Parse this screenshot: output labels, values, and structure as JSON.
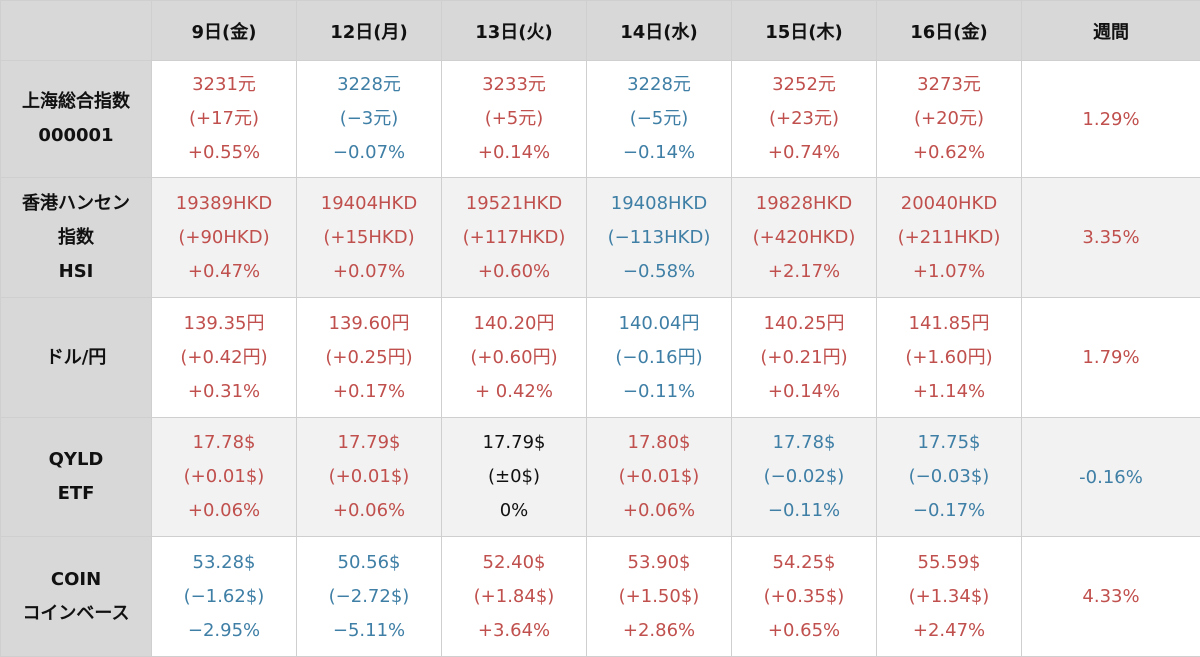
{
  "table": {
    "corner": "",
    "headers": [
      "9日(金)",
      "12日(月)",
      "13日(火)",
      "14日(水)",
      "15日(木)",
      "16日(金)",
      "週間"
    ],
    "colors": {
      "up": "#c0504d",
      "down": "#3f7fa6",
      "flat": "#111111"
    },
    "rows": [
      {
        "label": [
          "上海総合指数",
          "000001"
        ],
        "cells": [
          {
            "dir": "up",
            "lines": [
              "3231元",
              "(+17元)",
              "+0.55%"
            ]
          },
          {
            "dir": "down",
            "lines": [
              "3228元",
              "(−3元)",
              "−0.07%"
            ]
          },
          {
            "dir": "up",
            "lines": [
              "3233元",
              "(+5元)",
              "+0.14%"
            ]
          },
          {
            "dir": "down",
            "lines": [
              "3228元",
              "(−5元)",
              "−0.14%"
            ]
          },
          {
            "dir": "up",
            "lines": [
              "3252元",
              "(+23元)",
              "+0.74%"
            ]
          },
          {
            "dir": "up",
            "lines": [
              "3273元",
              "(+20元)",
              "+0.62%"
            ]
          }
        ],
        "week": {
          "dir": "up",
          "value": "1.29%"
        }
      },
      {
        "label": [
          "香港ハンセン",
          "指数",
          "HSI"
        ],
        "cells": [
          {
            "dir": "up",
            "lines": [
              "19389HKD",
              "(+90HKD)",
              "+0.47%"
            ]
          },
          {
            "dir": "up",
            "lines": [
              "19404HKD",
              "(+15HKD)",
              "+0.07%"
            ]
          },
          {
            "dir": "up",
            "lines": [
              "19521HKD",
              "(+117HKD)",
              "+0.60%"
            ]
          },
          {
            "dir": "down",
            "lines": [
              "19408HKD",
              "(−113HKD)",
              "−0.58%"
            ]
          },
          {
            "dir": "up",
            "lines": [
              "19828HKD",
              "(+420HKD)",
              "+2.17%"
            ]
          },
          {
            "dir": "up",
            "lines": [
              "20040HKD",
              "(+211HKD)",
              "+1.07%"
            ]
          }
        ],
        "week": {
          "dir": "up",
          "value": "3.35%"
        }
      },
      {
        "label": [
          "ドル/円"
        ],
        "cells": [
          {
            "dir": "up",
            "lines": [
              "139.35円",
              "(+0.42円)",
              "+0.31%"
            ]
          },
          {
            "dir": "up",
            "lines": [
              "139.60円",
              "(+0.25円)",
              "+0.17%"
            ]
          },
          {
            "dir": "up",
            "lines": [
              "140.20円",
              "(+0.60円)",
              "+ 0.42%"
            ]
          },
          {
            "dir": "down",
            "lines": [
              "140.04円",
              "(−0.16円)",
              "−0.11%"
            ]
          },
          {
            "dir": "up",
            "lines": [
              "140.25円",
              "(+0.21円)",
              "+0.14%"
            ]
          },
          {
            "dir": "up",
            "lines": [
              "141.85円",
              "(+1.60円)",
              "+1.14%"
            ]
          }
        ],
        "week": {
          "dir": "up",
          "value": "1.79%"
        }
      },
      {
        "label": [
          "QYLD",
          "ETF"
        ],
        "cells": [
          {
            "dir": "up",
            "lines": [
              "17.78$",
              "(+0.01$)",
              "+0.06%"
            ]
          },
          {
            "dir": "up",
            "lines": [
              "17.79$",
              "(+0.01$)",
              "+0.06%"
            ]
          },
          {
            "dir": "flat",
            "lines": [
              "17.79$",
              "(±0$)",
              "0%"
            ]
          },
          {
            "dir": "up",
            "lines": [
              "17.80$",
              "(+0.01$)",
              "+0.06%"
            ]
          },
          {
            "dir": "down",
            "lines": [
              "17.78$",
              "(−0.02$)",
              "−0.11%"
            ]
          },
          {
            "dir": "down",
            "lines": [
              "17.75$",
              "(−0.03$)",
              "−0.17%"
            ]
          }
        ],
        "week": {
          "dir": "down",
          "value": "-0.16%"
        }
      },
      {
        "label": [
          "COIN",
          "コインベース"
        ],
        "cells": [
          {
            "dir": "down",
            "lines": [
              "53.28$",
              "(−1.62$)",
              "−2.95%"
            ]
          },
          {
            "dir": "down",
            "lines": [
              "50.56$",
              "(−2.72$)",
              "−5.11%"
            ]
          },
          {
            "dir": "up",
            "lines": [
              "52.40$",
              "(+1.84$)",
              "+3.64%"
            ]
          },
          {
            "dir": "up",
            "lines": [
              "53.90$",
              "(+1.50$)",
              "+2.86%"
            ]
          },
          {
            "dir": "up",
            "lines": [
              "54.25$",
              "(+0.35$)",
              "+0.65%"
            ]
          },
          {
            "dir": "up",
            "lines": [
              "55.59$",
              "(+1.34$)",
              "+2.47%"
            ]
          }
        ],
        "week": {
          "dir": "up",
          "value": "4.33%"
        }
      }
    ]
  }
}
